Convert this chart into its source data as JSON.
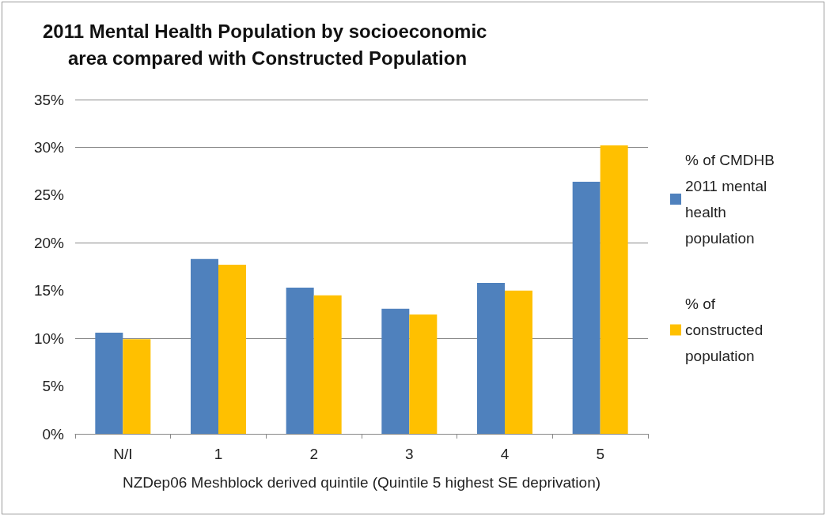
{
  "chart_data": {
    "type": "bar",
    "title": "2011 Mental Health Population by socioeconomic area compared with Constructed Population",
    "xlabel": "NZDep06 Meshblock derived quintile (Quintile 5 highest SE deprivation)",
    "categories": [
      "N/I",
      "1",
      "2",
      "3",
      "4",
      "5"
    ],
    "series": [
      {
        "name": "% of CMDHB 2011 mental health population",
        "color": "#4f81bd",
        "values": [
          10.6,
          18.3,
          15.3,
          13.1,
          15.8,
          26.4
        ]
      },
      {
        "name": "% of constructed population",
        "color": "#ffc000",
        "values": [
          9.9,
          17.7,
          14.5,
          12.5,
          15.0,
          30.2
        ]
      }
    ],
    "ylim": [
      0,
      35
    ],
    "yticks": [
      {
        "value": 0,
        "label": "0%"
      },
      {
        "value": 5,
        "label": "5%"
      },
      {
        "value": 10,
        "label": "10%"
      },
      {
        "value": 15,
        "label": "15%"
      },
      {
        "value": 20,
        "label": "20%"
      },
      {
        "value": 25,
        "label": "25%"
      },
      {
        "value": 30,
        "label": "30%"
      },
      {
        "value": 35,
        "label": "35%"
      }
    ],
    "grid": "y",
    "legend": "right"
  }
}
